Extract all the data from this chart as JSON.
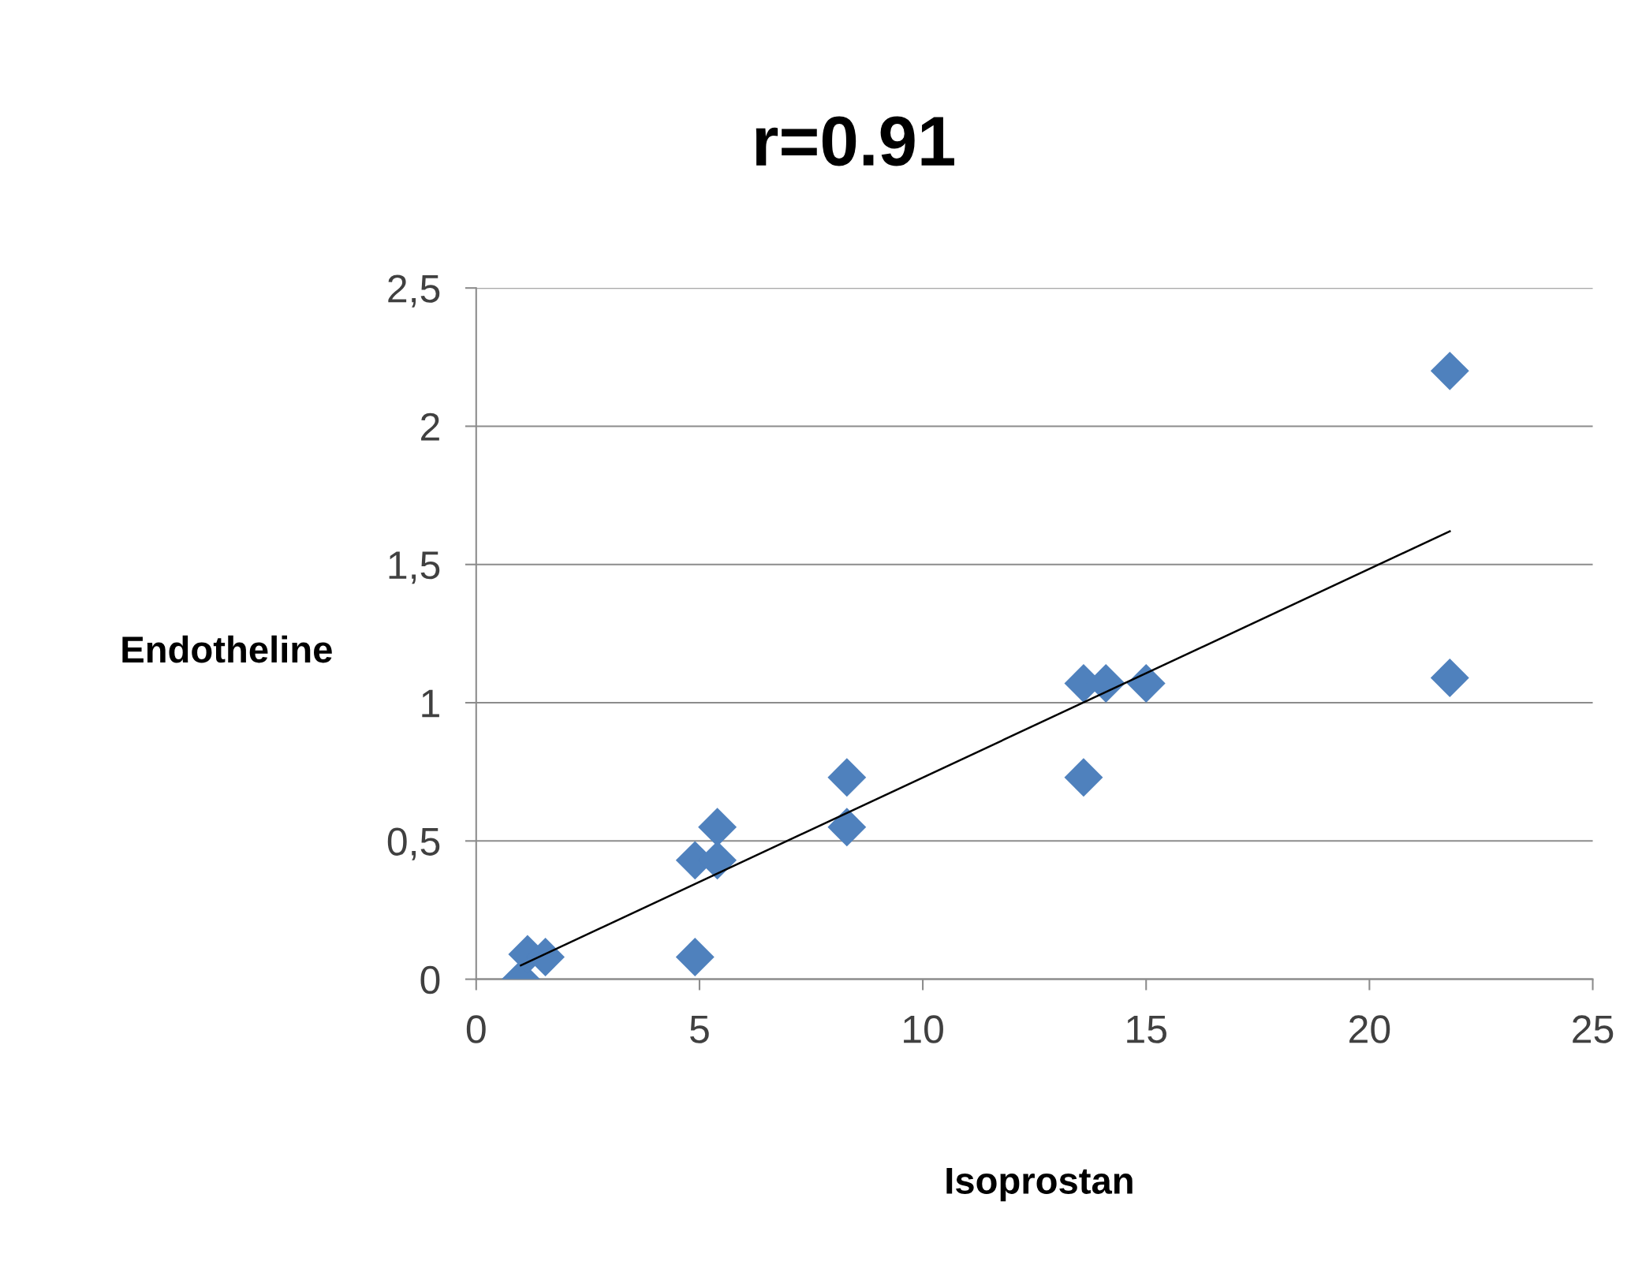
{
  "chart_data": {
    "type": "scatter",
    "title": "r=0.91",
    "xlabel": "Isoprostan",
    "ylabel": "Endotheline",
    "xlim": [
      0,
      25
    ],
    "xticks": [
      0,
      5,
      10,
      15,
      20,
      25
    ],
    "ylim": [
      0,
      2.5
    ],
    "yticks": [
      {
        "value": 0,
        "label": "0"
      },
      {
        "value": 0.5,
        "label": "0,5"
      },
      {
        "value": 1,
        "label": "1"
      },
      {
        "value": 1.5,
        "label": "1,5"
      },
      {
        "value": 2,
        "label": "2"
      },
      {
        "value": 2.5,
        "label": "2,5"
      }
    ],
    "grid": "y",
    "marker": "diamond",
    "series": [
      {
        "color": "#4f81bd",
        "x": [
          1.0,
          1.15,
          1.55,
          4.9,
          4.9,
          5.4,
          5.4,
          8.3,
          8.3,
          13.6,
          13.6,
          14.1,
          15.0,
          21.8,
          21.8
        ],
        "values": [
          0.0,
          0.09,
          0.08,
          0.08,
          0.43,
          0.55,
          0.43,
          0.73,
          0.55,
          0.73,
          1.07,
          1.07,
          1.07,
          2.2,
          1.09
        ]
      },
      {
        "type": "line",
        "color": "#000000",
        "marker": "none",
        "x": [
          1.0,
          21.8
        ],
        "values": [
          0.05,
          1.62
        ]
      }
    ]
  }
}
